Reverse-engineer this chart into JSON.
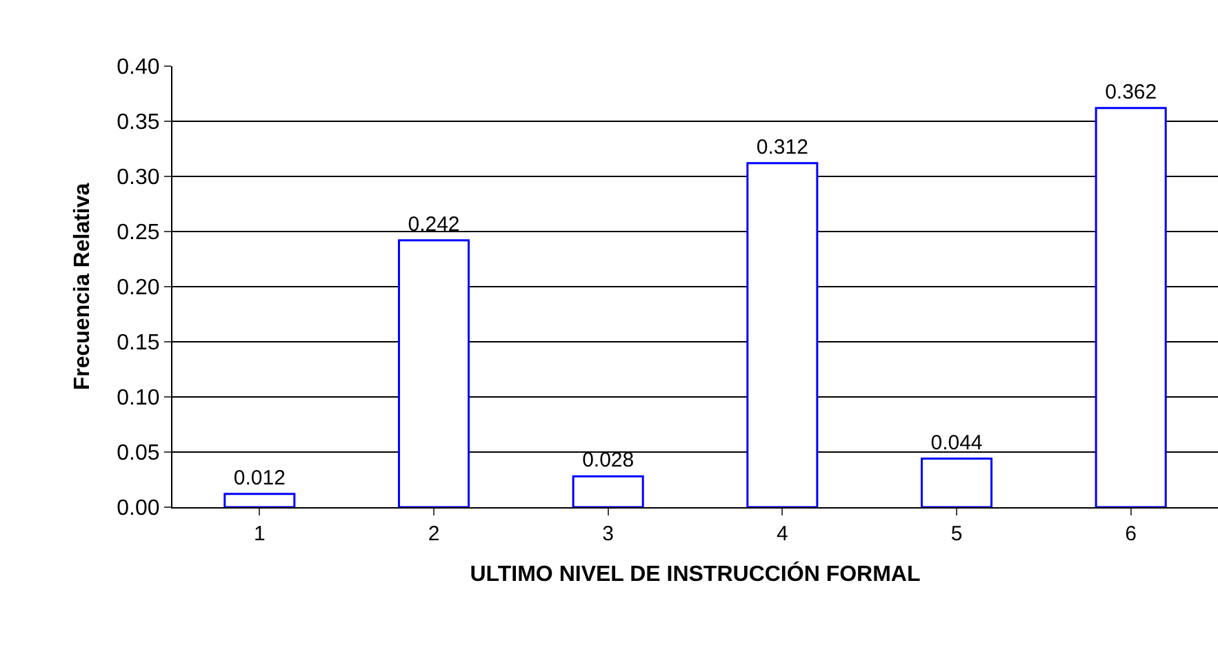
{
  "chart_data": {
    "type": "bar",
    "xlabel": "ULTIMO NIVEL DE INSTRUCCIÓN FORMAL",
    "ylabel": "Frecuencia Relativa",
    "categories": [
      "1",
      "2",
      "3",
      "4",
      "5",
      "6"
    ],
    "values": [
      0.012,
      0.242,
      0.028,
      0.312,
      0.044,
      0.362
    ],
    "color": "#0000ff",
    "data_labels": true,
    "ylim": [
      0,
      0.4
    ],
    "yticks": [
      {
        "value": 0,
        "label": "0.00"
      },
      {
        "value": 0.05,
        "label": "0.05"
      },
      {
        "value": 0.1,
        "label": "0.10"
      },
      {
        "value": 0.15,
        "label": "0.15"
      },
      {
        "value": 0.2,
        "label": "0.20"
      },
      {
        "value": 0.25,
        "label": "0.25"
      },
      {
        "value": 0.3,
        "label": "0.30"
      },
      {
        "value": 0.35,
        "label": "0.35"
      },
      {
        "value": 0.4,
        "label": "0.40"
      }
    ],
    "grid": "y"
  }
}
